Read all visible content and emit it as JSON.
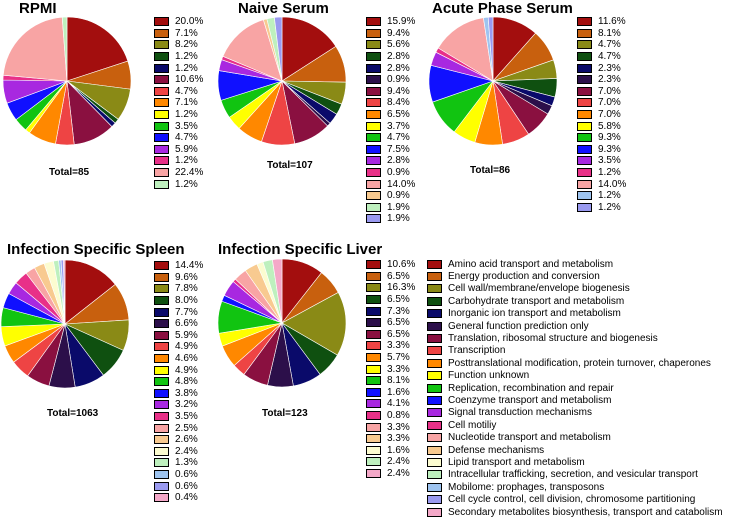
{
  "categories": [
    "Amino acid transport and metabolism",
    "Energy production and conversion",
    "Cell wall/membrane/envelope biogenesis",
    "Carbohydrate transport and metabolism",
    "Inorganic ion transport and metabolism",
    "General function prediction only",
    "Translation, ribosomal structure and biogenesis",
    "Transcription",
    "Posttranslational modification, protein turnover, chaperones",
    "Function unknown",
    "Replication, recombination and repair",
    "Coenzyme transport and metabolism",
    "Signal transduction mechanisms",
    "Cell motiliy",
    "Nucleotide transport and metabolism",
    "Defense mechanisms",
    "Lipid transport and metabolism",
    "Intracellular trafficking, secretion, and vesicular transport",
    "Mobilome: prophages, transposons",
    "Cell cycle control, cell division, chromosome partitioning",
    "Secondary metabolites biosynthesis, transport and catabolism"
  ],
  "colors": [
    "#a30e0e",
    "#c8600e",
    "#8a8a16",
    "#0f5010",
    "#0a0a6a",
    "#2c0f4a",
    "#8a1040",
    "#ee4444",
    "#ff8800",
    "#ffff00",
    "#11c411",
    "#1010ff",
    "#a828e0",
    "#e83088",
    "#f8a4a4",
    "#f8ca90",
    "#fcfcd0",
    "#bef0be",
    "#9ec4f0",
    "#9a9af0",
    "#f4a8c8"
  ],
  "chart_data": [
    {
      "type": "pie",
      "title": "RPMI",
      "total_label": "Total=85",
      "legend": [
        {
          "cat": 0,
          "label": "20.0%"
        },
        {
          "cat": 1,
          "label": "7.1%"
        },
        {
          "cat": 2,
          "label": "8.2%"
        },
        {
          "cat": 3,
          "label": "1.2%"
        },
        {
          "cat": 4,
          "label": "1.2%"
        },
        {
          "cat": 6,
          "label": "10.6%"
        },
        {
          "cat": 7,
          "label": "4.7%"
        },
        {
          "cat": 8,
          "label": "7.1%"
        },
        {
          "cat": 9,
          "label": "1.2%"
        },
        {
          "cat": 10,
          "label": "3.5%"
        },
        {
          "cat": 11,
          "label": "4.7%"
        },
        {
          "cat": 12,
          "label": "5.9%"
        },
        {
          "cat": 13,
          "label": "1.2%"
        },
        {
          "cat": 14,
          "label": "22.4%"
        },
        {
          "cat": 17,
          "label": "1.2%"
        }
      ],
      "values": [
        20.0,
        7.1,
        8.2,
        1.2,
        1.2,
        10.6,
        4.7,
        7.1,
        1.2,
        3.5,
        4.7,
        5.9,
        1.2,
        22.4,
        1.2
      ]
    },
    {
      "type": "pie",
      "title": "Naive Serum",
      "total_label": "Total=107",
      "legend": [
        {
          "cat": 0,
          "label": "15.9%"
        },
        {
          "cat": 1,
          "label": "9.4%"
        },
        {
          "cat": 2,
          "label": "5.6%"
        },
        {
          "cat": 3,
          "label": "2.8%"
        },
        {
          "cat": 4,
          "label": "2.8%"
        },
        {
          "cat": 5,
          "label": "0.9%"
        },
        {
          "cat": 6,
          "label": "9.4%"
        },
        {
          "cat": 7,
          "label": "8.4%"
        },
        {
          "cat": 8,
          "label": "6.5%"
        },
        {
          "cat": 9,
          "label": "3.7%"
        },
        {
          "cat": 10,
          "label": "4.7%"
        },
        {
          "cat": 11,
          "label": "7.5%"
        },
        {
          "cat": 12,
          "label": "2.8%"
        },
        {
          "cat": 13,
          "label": "0.9%"
        },
        {
          "cat": 14,
          "label": "14.0%"
        },
        {
          "cat": 15,
          "label": "0.9%"
        },
        {
          "cat": 17,
          "label": "1.9%"
        },
        {
          "cat": 19,
          "label": "1.9%"
        }
      ],
      "values": [
        15.9,
        9.4,
        5.6,
        2.8,
        2.8,
        0.9,
        9.4,
        8.4,
        6.5,
        3.7,
        4.7,
        7.5,
        2.8,
        0.9,
        14.0,
        0.9,
        1.9,
        1.9
      ]
    },
    {
      "type": "pie",
      "title": "Acute Phase Serum",
      "total_label": "Total=86",
      "legend": [
        {
          "cat": 0,
          "label": "11.6%"
        },
        {
          "cat": 1,
          "label": "8.1%"
        },
        {
          "cat": 2,
          "label": "4.7%"
        },
        {
          "cat": 3,
          "label": "4.7%"
        },
        {
          "cat": 4,
          "label": "2.3%"
        },
        {
          "cat": 5,
          "label": "2.3%"
        },
        {
          "cat": 6,
          "label": "7.0%"
        },
        {
          "cat": 7,
          "label": "7.0%"
        },
        {
          "cat": 8,
          "label": "7.0%"
        },
        {
          "cat": 9,
          "label": "5.8%"
        },
        {
          "cat": 10,
          "label": "9.3%"
        },
        {
          "cat": 11,
          "label": "9.3%"
        },
        {
          "cat": 12,
          "label": "3.5%"
        },
        {
          "cat": 13,
          "label": "1.2%"
        },
        {
          "cat": 14,
          "label": "14.0%"
        },
        {
          "cat": 18,
          "label": "1.2%"
        },
        {
          "cat": 19,
          "label": "1.2%"
        }
      ],
      "values": [
        11.6,
        8.1,
        4.7,
        4.7,
        2.3,
        2.3,
        7.0,
        7.0,
        7.0,
        5.8,
        9.3,
        9.3,
        3.5,
        1.2,
        14.0,
        1.2,
        1.2
      ]
    },
    {
      "type": "pie",
      "title": "Infection Specific Spleen",
      "total_label": "Total=1063",
      "legend": [
        {
          "cat": 0,
          "label": "14.4%"
        },
        {
          "cat": 1,
          "label": "9.6%"
        },
        {
          "cat": 2,
          "label": "7.8%"
        },
        {
          "cat": 3,
          "label": "8.0%"
        },
        {
          "cat": 4,
          "label": "7.7%"
        },
        {
          "cat": 5,
          "label": "6.6%"
        },
        {
          "cat": 6,
          "label": "5.9%"
        },
        {
          "cat": 7,
          "label": "4.9%"
        },
        {
          "cat": 8,
          "label": "4.6%"
        },
        {
          "cat": 9,
          "label": "4.9%"
        },
        {
          "cat": 10,
          "label": "4.8%"
        },
        {
          "cat": 11,
          "label": "3.8%"
        },
        {
          "cat": 12,
          "label": "3.2%"
        },
        {
          "cat": 13,
          "label": "3.5%"
        },
        {
          "cat": 14,
          "label": "2.5%"
        },
        {
          "cat": 15,
          "label": "2.6%"
        },
        {
          "cat": 16,
          "label": "2.4%"
        },
        {
          "cat": 17,
          "label": "1.3%"
        },
        {
          "cat": 18,
          "label": "0.6%"
        },
        {
          "cat": 19,
          "label": "0.6%"
        },
        {
          "cat": 20,
          "label": "0.4%"
        }
      ],
      "values": [
        14.4,
        9.6,
        7.8,
        8.0,
        7.7,
        6.6,
        5.9,
        4.9,
        4.6,
        4.9,
        4.8,
        3.8,
        3.2,
        3.5,
        2.5,
        2.6,
        2.4,
        1.3,
        0.6,
        0.6,
        0.4
      ]
    },
    {
      "type": "pie",
      "title": "Infection Specific Liver",
      "total_label": "Total=123",
      "legend": [
        {
          "cat": 0,
          "label": "10.6%"
        },
        {
          "cat": 1,
          "label": "6.5%"
        },
        {
          "cat": 2,
          "label": "16.3%"
        },
        {
          "cat": 3,
          "label": "6.5%"
        },
        {
          "cat": 4,
          "label": "7.3%"
        },
        {
          "cat": 5,
          "label": "6.5%"
        },
        {
          "cat": 6,
          "label": "6.5%"
        },
        {
          "cat": 7,
          "label": "3.3%"
        },
        {
          "cat": 8,
          "label": "5.7%"
        },
        {
          "cat": 9,
          "label": "3.3%"
        },
        {
          "cat": 10,
          "label": "8.1%"
        },
        {
          "cat": 11,
          "label": "1.6%"
        },
        {
          "cat": 12,
          "label": "4.1%"
        },
        {
          "cat": 13,
          "label": "0.8%"
        },
        {
          "cat": 14,
          "label": "3.3%"
        },
        {
          "cat": 15,
          "label": "3.3%"
        },
        {
          "cat": 16,
          "label": "1.6%"
        },
        {
          "cat": 17,
          "label": "2.4%"
        },
        {
          "cat": 20,
          "label": "2.4%"
        }
      ],
      "values": [
        10.6,
        6.5,
        16.3,
        6.5,
        7.3,
        6.5,
        6.5,
        3.3,
        5.7,
        3.3,
        8.1,
        1.6,
        4.1,
        0.8,
        3.3,
        3.3,
        1.6,
        2.4,
        2.4
      ]
    }
  ]
}
